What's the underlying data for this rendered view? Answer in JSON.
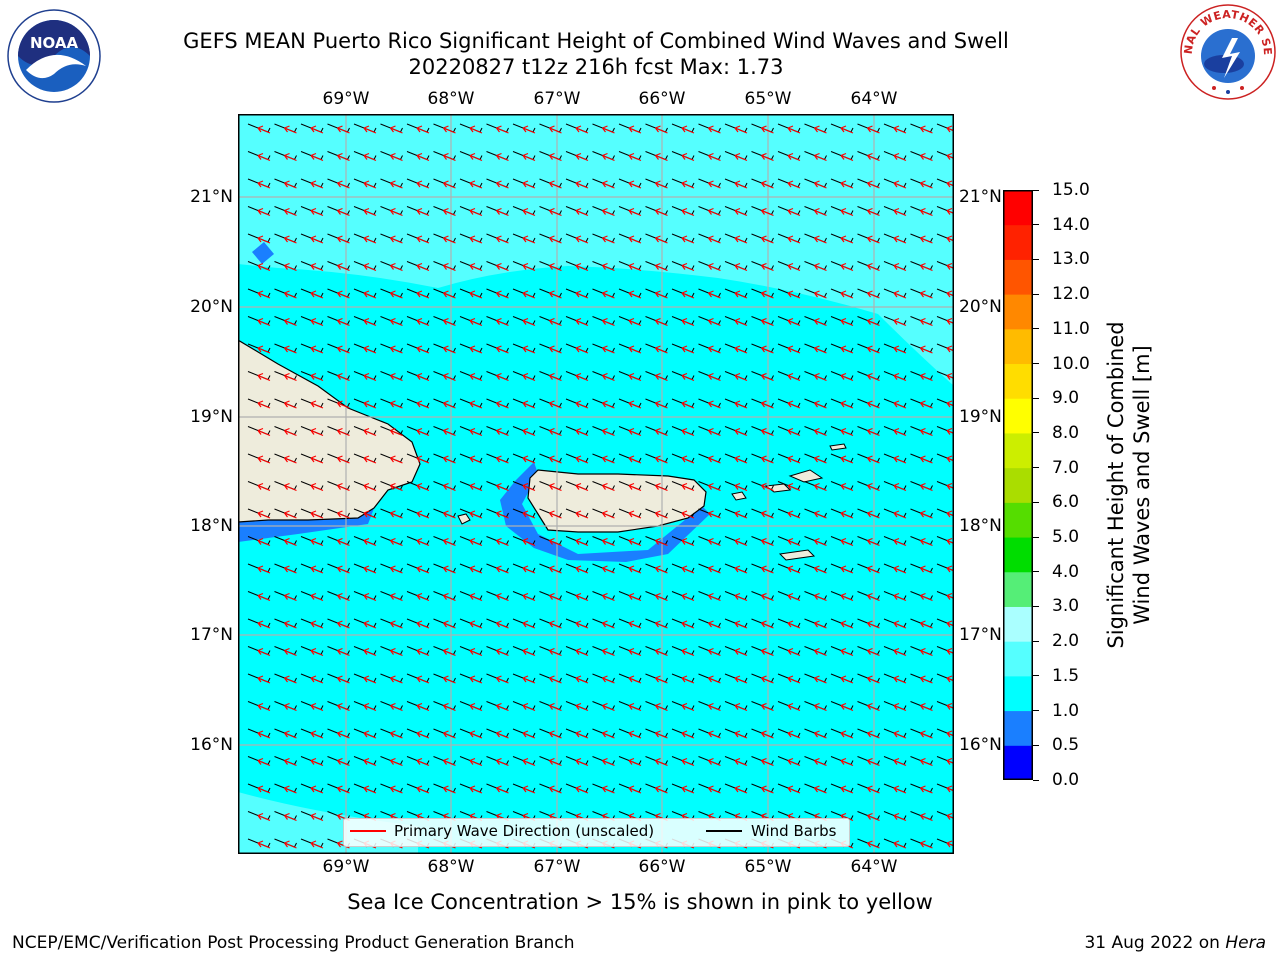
{
  "title": {
    "line1": "GEFS MEAN Puerto Rico Significant Height of Combined Wind Waves and Swell",
    "line2": "20220827 t12z 216h fcst   Max: 1.73"
  },
  "logos": {
    "left_logo_text": "NOAA",
    "right_logo_text": "NATIONAL WEATHER SERVICE"
  },
  "map": {
    "lon_labels": [
      "69°W",
      "68°W",
      "67°W",
      "66°W",
      "65°W",
      "64°W"
    ],
    "lat_labels": [
      "21°N",
      "20°N",
      "19°N",
      "18°N",
      "17°N",
      "16°N"
    ],
    "colors": {
      "ocean_main": "#00ffff",
      "ocean_light": "#55ffff",
      "shallow": "#1a7fff",
      "land": "#eeecdc",
      "grid": "#b0b0b0",
      "wave_arrow": "#ff0000",
      "wind_barb": "#000000"
    }
  },
  "legend": {
    "wave_label": "Primary Wave Direction (unscaled)",
    "barb_label": "Wind Barbs"
  },
  "colorbar": {
    "label_line1": "Significant Height of Combined",
    "label_line2": "Wind Waves and Swell [m]",
    "ticks": [
      "0.0",
      "0.5",
      "1.0",
      "1.5",
      "2.0",
      "3.0",
      "4.0",
      "5.0",
      "6.0",
      "7.0",
      "8.0",
      "9.0",
      "10.0",
      "11.0",
      "12.0",
      "13.0",
      "14.0",
      "15.0"
    ],
    "colors": [
      "#0000ff",
      "#1a7fff",
      "#00ffff",
      "#55ffff",
      "#aaffff",
      "#55ee77",
      "#00dd00",
      "#55dd00",
      "#aadd00",
      "#ccee00",
      "#ffff00",
      "#ffdd00",
      "#ffbb00",
      "#ff8800",
      "#ff5500",
      "#ff2200",
      "#ff0000"
    ]
  },
  "caption": "Sea Ice Concentration > 15% is shown in pink to yellow",
  "footer": {
    "left": "NCEP/EMC/Verification Post Processing Product Generation Branch",
    "right_date": "31 Aug 2022 on ",
    "right_machine": "Hera"
  }
}
